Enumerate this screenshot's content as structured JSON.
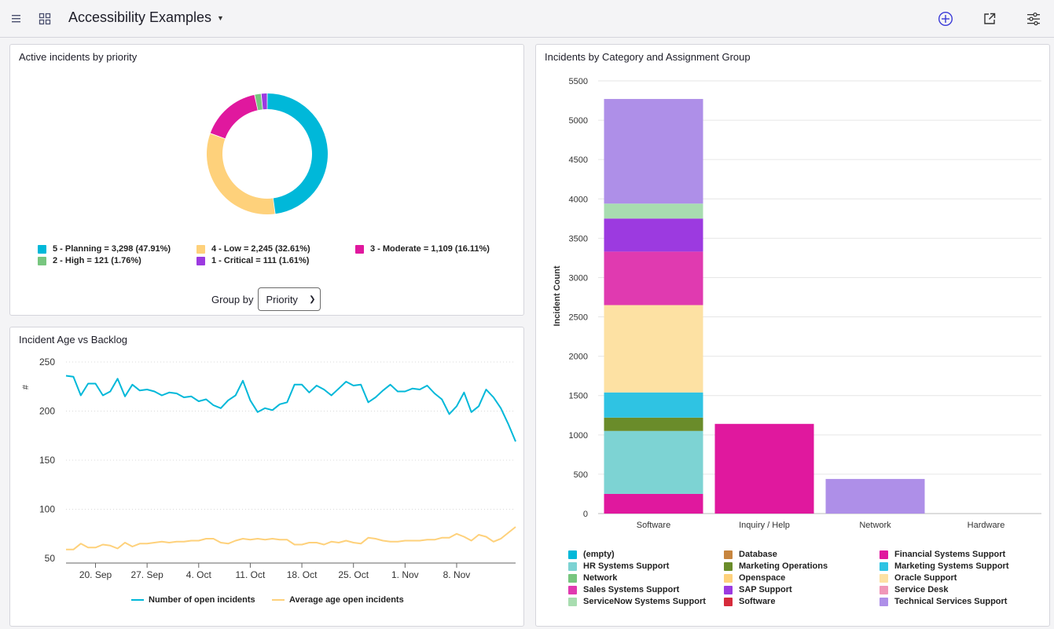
{
  "header": {
    "title": "Accessibility Examples"
  },
  "colors": {
    "accent": "#3a3ad8",
    "cyan": "#00b8d9",
    "yellow": "#fed17b"
  },
  "donut_card": {
    "title": "Active incidents by priority",
    "groupby_label": "Group by",
    "groupby_value": "Priority"
  },
  "line_card": {
    "title": "Incident Age vs Backlog"
  },
  "bar_card": {
    "title": "Incidents by Category and Assignment Group"
  },
  "chart_data": [
    {
      "type": "pie",
      "title": "Active incidents by priority",
      "slices": [
        {
          "label": "5 - Planning = 3,298 (47.91%)",
          "value": 3298,
          "color": "#00b8d9"
        },
        {
          "label": "4 - Low = 2,245 (32.61%)",
          "value": 2245,
          "color": "#fed17b"
        },
        {
          "label": "3 - Moderate = 1,109 (16.11%)",
          "value": 1109,
          "color": "#e0189e"
        },
        {
          "label": "2 - High = 121 (1.76%)",
          "value": 121,
          "color": "#78c67f"
        },
        {
          "label": "1 - Critical = 111 (1.61%)",
          "value": 111,
          "color": "#9c3ae0"
        }
      ]
    },
    {
      "type": "line",
      "title": "Incident Age vs Backlog",
      "ylabel": "#",
      "ylim": [
        50,
        250
      ],
      "yticks": [
        250,
        200,
        150,
        100,
        50
      ],
      "xticks": [
        {
          "label": "20. Sep",
          "day": 4
        },
        {
          "label": "27. Sep",
          "day": 11
        },
        {
          "label": "4. Oct",
          "day": 18
        },
        {
          "label": "11. Oct",
          "day": 25
        },
        {
          "label": "18. Oct",
          "day": 32
        },
        {
          "label": "25. Oct",
          "day": 39
        },
        {
          "label": "1. Nov",
          "day": 46
        },
        {
          "label": "8. Nov",
          "day": 53
        }
      ],
      "series": [
        {
          "name": "Number of open incidents",
          "color": "#00b8d9",
          "values": [
            236,
            235,
            216,
            228,
            228,
            216,
            220,
            233,
            215,
            227,
            221,
            222,
            220,
            216,
            219,
            218,
            214,
            215,
            210,
            212,
            206,
            203,
            211,
            216,
            231,
            211,
            199,
            203,
            201,
            207,
            209,
            227,
            227,
            219,
            226,
            222,
            216,
            223,
            230,
            226,
            227,
            209,
            214,
            221,
            227,
            220,
            220,
            223,
            222,
            226,
            218,
            212,
            197,
            205,
            219,
            199,
            205,
            222,
            214,
            203,
            187,
            169
          ]
        },
        {
          "name": "Average age open incidents",
          "color": "#fed17b",
          "values": [
            59,
            59,
            65,
            61,
            61,
            64,
            63,
            60,
            66,
            62,
            65,
            65,
            66,
            67,
            66,
            67,
            67,
            68,
            68,
            70,
            70,
            66,
            65,
            68,
            70,
            69,
            70,
            69,
            70,
            69,
            69,
            64,
            64,
            66,
            66,
            64,
            67,
            66,
            68,
            66,
            65,
            71,
            70,
            68,
            67,
            67,
            68,
            68,
            68,
            69,
            69,
            71,
            71,
            75,
            72,
            68,
            74,
            72,
            67,
            70,
            76,
            82
          ]
        }
      ]
    },
    {
      "type": "bar",
      "title": "Incidents by Category and Assignment Group",
      "ylabel": "Incident Count",
      "ylim": [
        0,
        5500
      ],
      "yticks": [
        5500,
        5000,
        4500,
        4000,
        3500,
        3000,
        2500,
        2000,
        1500,
        1000,
        500,
        0
      ],
      "categories": [
        "Software",
        "Inquiry / Help",
        "Network",
        "Hardware"
      ],
      "groups": [
        {
          "name": "(empty)",
          "color": "#00b8d9",
          "values": [
            0,
            0,
            0,
            0
          ]
        },
        {
          "name": "Database",
          "color": "#c7853e",
          "values": [
            0,
            0,
            0,
            0
          ]
        },
        {
          "name": "Financial Systems Support",
          "color": "#e0189e",
          "values": [
            250,
            1140,
            0,
            0
          ]
        },
        {
          "name": "HR Systems Support",
          "color": "#7dd3d3",
          "values": [
            800,
            0,
            0,
            0
          ]
        },
        {
          "name": "Marketing Operations",
          "color": "#6a8c2a",
          "values": [
            170,
            0,
            0,
            0
          ]
        },
        {
          "name": "Marketing Systems Support",
          "color": "#2fc3e3",
          "values": [
            320,
            0,
            0,
            0
          ]
        },
        {
          "name": "Network",
          "color": "#78c67f",
          "values": [
            0,
            0,
            0,
            0
          ]
        },
        {
          "name": "Openspace",
          "color": "#fed17b",
          "values": [
            0,
            0,
            0,
            0
          ]
        },
        {
          "name": "Oracle Support",
          "color": "#fde1a3",
          "values": [
            1110,
            0,
            0,
            0
          ]
        },
        {
          "name": "Sales Systems Support",
          "color": "#e03ab0",
          "values": [
            680,
            0,
            0,
            0
          ]
        },
        {
          "name": "SAP Support",
          "color": "#9c3ae0",
          "values": [
            420,
            0,
            0,
            0
          ]
        },
        {
          "name": "Service Desk",
          "color": "#f097b8",
          "values": [
            0,
            0,
            0,
            0
          ]
        },
        {
          "name": "ServiceNow Systems Support",
          "color": "#a8ddb0",
          "values": [
            190,
            0,
            0,
            0
          ]
        },
        {
          "name": "Software",
          "color": "#d62b3b",
          "values": [
            0,
            0,
            0,
            0
          ]
        },
        {
          "name": "Technical Services Support",
          "color": "#ae8fe8",
          "values": [
            1330,
            0,
            440,
            0
          ]
        }
      ]
    }
  ]
}
